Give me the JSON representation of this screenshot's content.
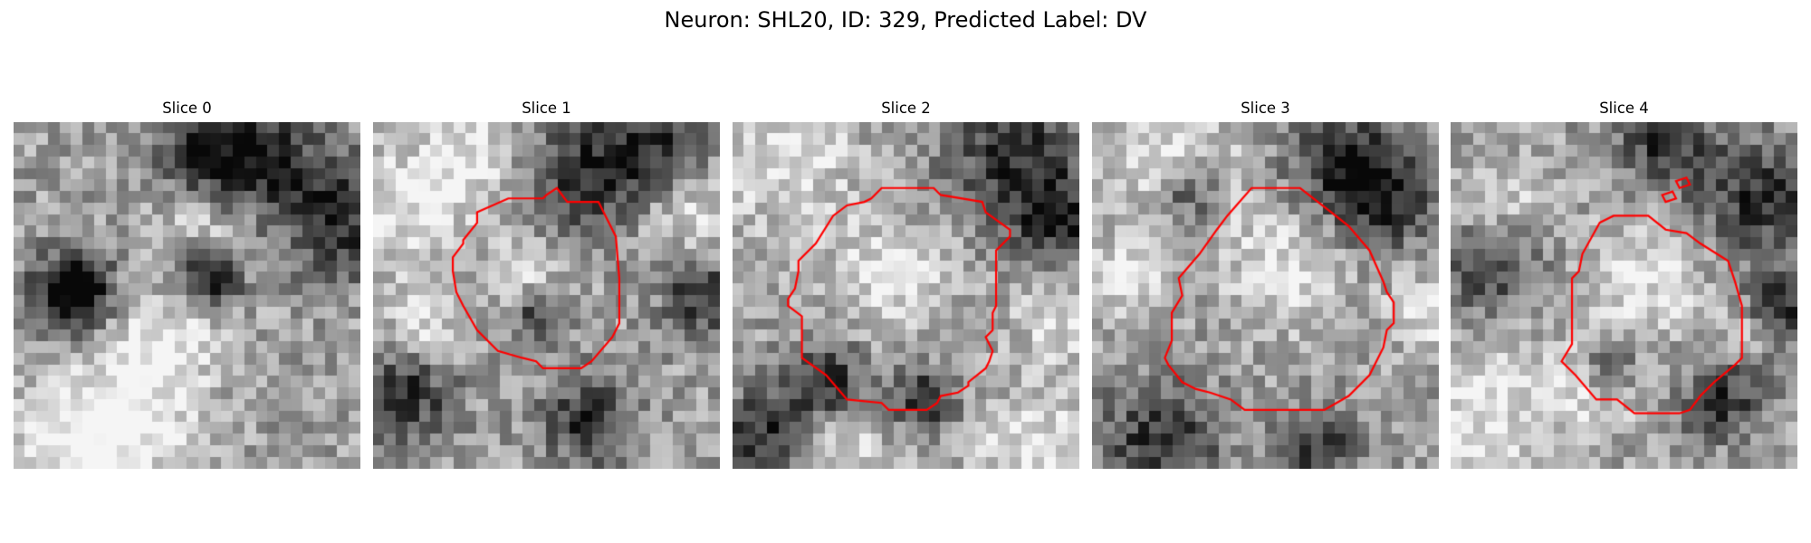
{
  "figure": {
    "title": "Neuron: SHL20, ID: 329, Predicted Label: DV"
  },
  "panels": [
    {
      "title": "Slice 0",
      "has_contour": false,
      "seed": 11,
      "darks": [
        [
          0.17,
          0.52,
          0.09
        ],
        [
          0.18,
          0.47,
          0.07
        ],
        [
          0.52,
          0.43,
          0.06
        ],
        [
          0.6,
          0.45,
          0.05
        ],
        [
          0.72,
          0.12,
          0.12
        ],
        [
          0.95,
          0.28,
          0.12
        ],
        [
          0.55,
          0.1,
          0.1
        ]
      ],
      "brights": [
        [
          0.35,
          0.88,
          0.14
        ],
        [
          0.15,
          0.95,
          0.15
        ],
        [
          0.55,
          0.3,
          0.1
        ],
        [
          0.4,
          0.62,
          0.12
        ]
      ]
    },
    {
      "title": "Slice 1",
      "has_contour": true,
      "seed": 23,
      "darks": [
        [
          0.62,
          0.86,
          0.09
        ],
        [
          0.6,
          0.15,
          0.12
        ],
        [
          0.82,
          0.08,
          0.1
        ],
        [
          0.1,
          0.78,
          0.1
        ],
        [
          0.95,
          0.5,
          0.08
        ],
        [
          0.48,
          0.55,
          0.06
        ]
      ],
      "brights": [
        [
          0.08,
          0.25,
          0.14
        ],
        [
          0.3,
          0.1,
          0.1
        ],
        [
          0.45,
          0.45,
          0.08
        ],
        [
          0.92,
          0.25,
          0.1
        ],
        [
          0.15,
          0.6,
          0.08
        ]
      ],
      "contour": [
        [
          0.53,
          0.19
        ],
        [
          0.56,
          0.23
        ],
        [
          0.65,
          0.23
        ],
        [
          0.67,
          0.27
        ],
        [
          0.7,
          0.33
        ],
        [
          0.71,
          0.45
        ],
        [
          0.71,
          0.58
        ],
        [
          0.69,
          0.62
        ],
        [
          0.63,
          0.69
        ],
        [
          0.6,
          0.71
        ],
        [
          0.49,
          0.71
        ],
        [
          0.47,
          0.69
        ],
        [
          0.43,
          0.68
        ],
        [
          0.36,
          0.66
        ],
        [
          0.3,
          0.6
        ],
        [
          0.26,
          0.53
        ],
        [
          0.24,
          0.49
        ],
        [
          0.23,
          0.43
        ],
        [
          0.23,
          0.39
        ],
        [
          0.26,
          0.35
        ],
        [
          0.26,
          0.34
        ],
        [
          0.3,
          0.29
        ],
        [
          0.3,
          0.26
        ],
        [
          0.39,
          0.22
        ],
        [
          0.4,
          0.22
        ],
        [
          0.49,
          0.22
        ],
        [
          0.5,
          0.21
        ]
      ]
    },
    {
      "title": "Slice 2",
      "has_contour": true,
      "seed": 37,
      "darks": [
        [
          0.82,
          0.08,
          0.14
        ],
        [
          0.95,
          0.3,
          0.1
        ],
        [
          0.28,
          0.75,
          0.08
        ],
        [
          0.1,
          0.9,
          0.1
        ],
        [
          0.55,
          0.8,
          0.07
        ]
      ],
      "brights": [
        [
          0.15,
          0.1,
          0.14
        ],
        [
          0.95,
          0.55,
          0.1
        ],
        [
          0.45,
          0.45,
          0.12
        ],
        [
          0.3,
          0.95,
          0.1
        ],
        [
          0.88,
          0.95,
          0.12
        ]
      ],
      "contour": [
        [
          0.43,
          0.19
        ],
        [
          0.58,
          0.19
        ],
        [
          0.6,
          0.21
        ],
        [
          0.72,
          0.23
        ],
        [
          0.73,
          0.26
        ],
        [
          0.8,
          0.31
        ],
        [
          0.8,
          0.33
        ],
        [
          0.76,
          0.37
        ],
        [
          0.76,
          0.53
        ],
        [
          0.75,
          0.55
        ],
        [
          0.75,
          0.6
        ],
        [
          0.73,
          0.62
        ],
        [
          0.75,
          0.66
        ],
        [
          0.74,
          0.69
        ],
        [
          0.73,
          0.71
        ],
        [
          0.68,
          0.75
        ],
        [
          0.68,
          0.76
        ],
        [
          0.65,
          0.78
        ],
        [
          0.6,
          0.79
        ],
        [
          0.59,
          0.81
        ],
        [
          0.56,
          0.83
        ],
        [
          0.45,
          0.83
        ],
        [
          0.43,
          0.81
        ],
        [
          0.33,
          0.8
        ],
        [
          0.27,
          0.73
        ],
        [
          0.2,
          0.68
        ],
        [
          0.2,
          0.56
        ],
        [
          0.16,
          0.53
        ],
        [
          0.16,
          0.51
        ],
        [
          0.18,
          0.48
        ],
        [
          0.19,
          0.43
        ],
        [
          0.19,
          0.4
        ],
        [
          0.24,
          0.35
        ],
        [
          0.29,
          0.27
        ],
        [
          0.33,
          0.24
        ],
        [
          0.38,
          0.23
        ],
        [
          0.4,
          0.22
        ]
      ]
    },
    {
      "title": "Slice 3",
      "has_contour": true,
      "seed": 53,
      "darks": [
        [
          0.72,
          0.12,
          0.11
        ],
        [
          0.85,
          0.22,
          0.1
        ],
        [
          0.2,
          0.92,
          0.12
        ],
        [
          0.65,
          0.95,
          0.08
        ],
        [
          0.28,
          0.2,
          0.06
        ]
      ],
      "brights": [
        [
          0.22,
          0.1,
          0.14
        ],
        [
          0.55,
          0.42,
          0.12
        ],
        [
          0.97,
          0.55,
          0.08
        ],
        [
          0.1,
          0.45,
          0.08
        ]
      ],
      "contour": [
        [
          0.46,
          0.19
        ],
        [
          0.6,
          0.19
        ],
        [
          0.69,
          0.26
        ],
        [
          0.74,
          0.3
        ],
        [
          0.8,
          0.37
        ],
        [
          0.84,
          0.46
        ],
        [
          0.85,
          0.49
        ],
        [
          0.87,
          0.52
        ],
        [
          0.87,
          0.58
        ],
        [
          0.85,
          0.6
        ],
        [
          0.84,
          0.65
        ],
        [
          0.8,
          0.73
        ],
        [
          0.74,
          0.79
        ],
        [
          0.67,
          0.83
        ],
        [
          0.44,
          0.83
        ],
        [
          0.4,
          0.8
        ],
        [
          0.34,
          0.78
        ],
        [
          0.3,
          0.77
        ],
        [
          0.26,
          0.75
        ],
        [
          0.22,
          0.7
        ],
        [
          0.21,
          0.68
        ],
        [
          0.23,
          0.63
        ],
        [
          0.23,
          0.55
        ],
        [
          0.26,
          0.5
        ],
        [
          0.25,
          0.45
        ],
        [
          0.31,
          0.38
        ],
        [
          0.36,
          0.31
        ],
        [
          0.39,
          0.27
        ]
      ]
    },
    {
      "title": "Slice 4",
      "has_contour": true,
      "seed": 71,
      "darks": [
        [
          0.62,
          0.05,
          0.1
        ],
        [
          0.9,
          0.22,
          0.12
        ],
        [
          0.12,
          0.4,
          0.1
        ],
        [
          0.95,
          0.55,
          0.08
        ],
        [
          0.78,
          0.8,
          0.08
        ],
        [
          0.45,
          0.7,
          0.06
        ]
      ],
      "brights": [
        [
          0.1,
          0.85,
          0.14
        ],
        [
          0.4,
          0.75,
          0.1
        ],
        [
          0.15,
          0.25,
          0.1
        ],
        [
          0.55,
          0.45,
          0.12
        ],
        [
          0.85,
          0.6,
          0.06
        ]
      ],
      "contour": [
        [
          0.43,
          0.29
        ],
        [
          0.47,
          0.27
        ],
        [
          0.57,
          0.27
        ],
        [
          0.62,
          0.31
        ],
        [
          0.68,
          0.32
        ],
        [
          0.72,
          0.35
        ],
        [
          0.8,
          0.4
        ],
        [
          0.82,
          0.46
        ],
        [
          0.84,
          0.53
        ],
        [
          0.84,
          0.68
        ],
        [
          0.82,
          0.7
        ],
        [
          0.76,
          0.75
        ],
        [
          0.72,
          0.79
        ],
        [
          0.69,
          0.83
        ],
        [
          0.66,
          0.84
        ],
        [
          0.53,
          0.84
        ],
        [
          0.48,
          0.8
        ],
        [
          0.42,
          0.8
        ],
        [
          0.36,
          0.73
        ],
        [
          0.32,
          0.69
        ],
        [
          0.35,
          0.64
        ],
        [
          0.35,
          0.45
        ],
        [
          0.37,
          0.43
        ],
        [
          0.38,
          0.38
        ]
      ],
      "extra_contours": [
        [
          [
            0.61,
            0.21
          ],
          [
            0.64,
            0.2
          ],
          [
            0.65,
            0.22
          ],
          [
            0.62,
            0.23
          ]
        ],
        [
          [
            0.65,
            0.17
          ],
          [
            0.68,
            0.16
          ],
          [
            0.69,
            0.18
          ],
          [
            0.66,
            0.19
          ]
        ]
      ]
    }
  ],
  "colors": {
    "contour": "#ff0000",
    "background": "#ffffff"
  }
}
